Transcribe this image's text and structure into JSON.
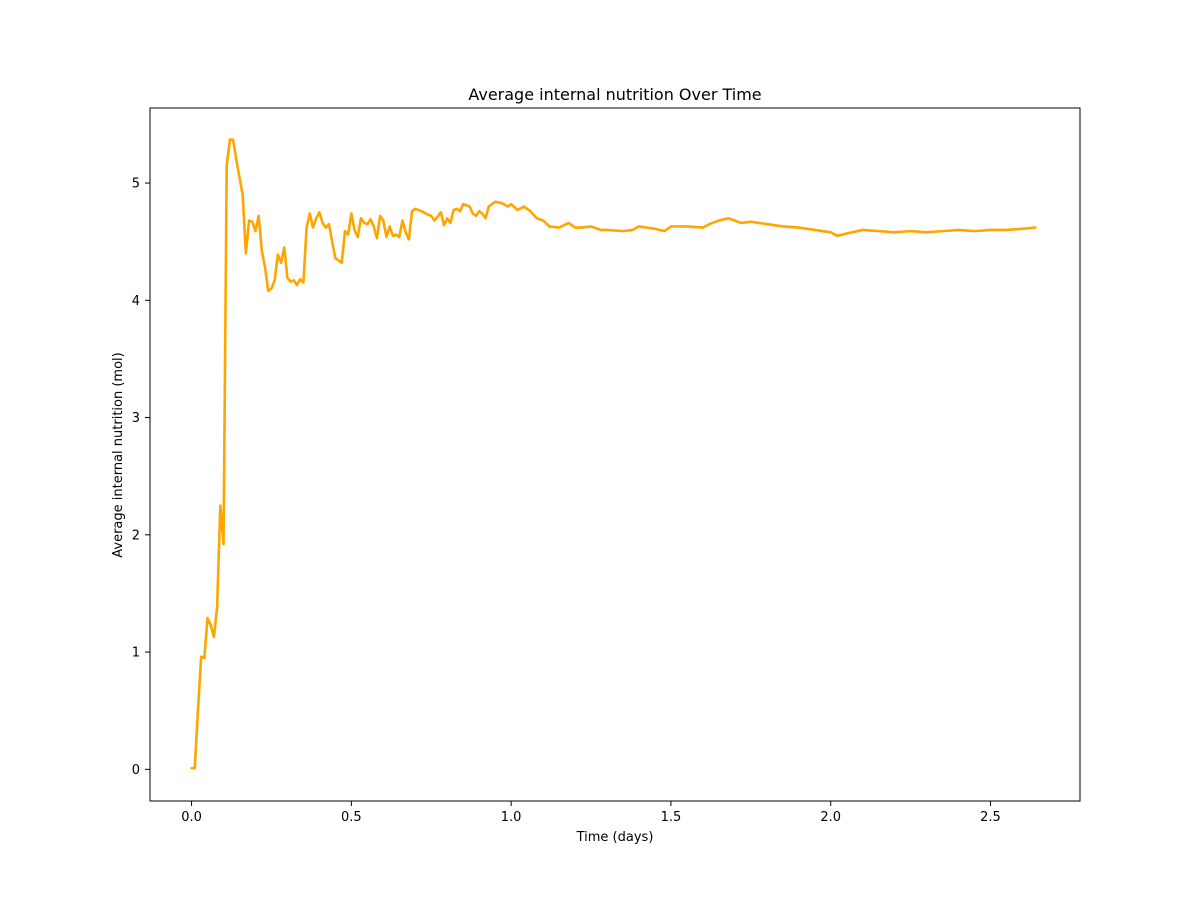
{
  "chart_data": {
    "type": "line",
    "title": "Average internal nutrition Over Time",
    "xlabel": "Time (days)",
    "ylabel": "Average internal nutrition (mol)",
    "xlim": [
      -0.13,
      2.78
    ],
    "ylim": [
      -0.27,
      5.64
    ],
    "xticks": [
      0.0,
      0.5,
      1.0,
      1.5,
      2.0,
      2.5
    ],
    "xtick_labels": [
      "0.0",
      "0.5",
      "1.0",
      "1.5",
      "2.0",
      "2.5"
    ],
    "yticks": [
      0,
      1,
      2,
      3,
      4,
      5
    ],
    "ytick_labels": [
      "0",
      "1",
      "2",
      "3",
      "4",
      "5"
    ],
    "grid": false,
    "legend": "none",
    "series": [
      {
        "color": "#FFA500",
        "x": [
          0.0,
          0.01,
          0.02,
          0.03,
          0.04,
          0.05,
          0.06,
          0.07,
          0.08,
          0.09,
          0.1,
          0.11,
          0.12,
          0.13,
          0.14,
          0.15,
          0.16,
          0.17,
          0.18,
          0.19,
          0.2,
          0.21,
          0.22,
          0.23,
          0.24,
          0.25,
          0.26,
          0.27,
          0.28,
          0.29,
          0.3,
          0.31,
          0.32,
          0.33,
          0.34,
          0.35,
          0.36,
          0.37,
          0.38,
          0.39,
          0.4,
          0.41,
          0.42,
          0.43,
          0.44,
          0.45,
          0.46,
          0.47,
          0.48,
          0.49,
          0.5,
          0.51,
          0.52,
          0.53,
          0.54,
          0.55,
          0.56,
          0.57,
          0.58,
          0.59,
          0.6,
          0.61,
          0.62,
          0.63,
          0.64,
          0.65,
          0.66,
          0.67,
          0.68,
          0.69,
          0.7,
          0.72,
          0.74,
          0.75,
          0.76,
          0.78,
          0.79,
          0.8,
          0.81,
          0.82,
          0.83,
          0.84,
          0.85,
          0.87,
          0.88,
          0.89,
          0.9,
          0.91,
          0.92,
          0.93,
          0.95,
          0.97,
          0.99,
          1.0,
          1.02,
          1.04,
          1.05,
          1.06,
          1.08,
          1.1,
          1.12,
          1.15,
          1.18,
          1.2,
          1.22,
          1.25,
          1.28,
          1.3,
          1.35,
          1.38,
          1.4,
          1.45,
          1.48,
          1.5,
          1.55,
          1.6,
          1.62,
          1.65,
          1.68,
          1.7,
          1.72,
          1.75,
          1.8,
          1.85,
          1.9,
          1.95,
          2.0,
          2.02,
          2.05,
          2.1,
          2.15,
          2.2,
          2.25,
          2.3,
          2.35,
          2.4,
          2.45,
          2.5,
          2.55,
          2.6,
          2.64
        ],
        "y": [
          0.01,
          0.01,
          0.5,
          0.96,
          0.95,
          1.29,
          1.23,
          1.13,
          1.38,
          2.25,
          1.92,
          5.15,
          5.37,
          5.37,
          5.2,
          5.05,
          4.9,
          4.4,
          4.68,
          4.67,
          4.59,
          4.72,
          4.42,
          4.28,
          4.08,
          4.1,
          4.17,
          4.39,
          4.32,
          4.45,
          4.19,
          4.16,
          4.17,
          4.13,
          4.18,
          4.15,
          4.62,
          4.74,
          4.62,
          4.7,
          4.75,
          4.66,
          4.62,
          4.65,
          4.5,
          4.36,
          4.34,
          4.32,
          4.59,
          4.56,
          4.74,
          4.6,
          4.54,
          4.7,
          4.66,
          4.65,
          4.69,
          4.63,
          4.53,
          4.72,
          4.68,
          4.54,
          4.63,
          4.55,
          4.56,
          4.54,
          4.68,
          4.58,
          4.52,
          4.76,
          4.78,
          4.76,
          4.73,
          4.72,
          4.68,
          4.75,
          4.64,
          4.7,
          4.66,
          4.77,
          4.78,
          4.76,
          4.82,
          4.8,
          4.74,
          4.72,
          4.76,
          4.74,
          4.7,
          4.8,
          4.84,
          4.83,
          4.8,
          4.82,
          4.77,
          4.8,
          4.78,
          4.76,
          4.7,
          4.68,
          4.63,
          4.62,
          4.66,
          4.62,
          4.62,
          4.63,
          4.6,
          4.6,
          4.59,
          4.6,
          4.63,
          4.61,
          4.59,
          4.63,
          4.63,
          4.62,
          4.65,
          4.68,
          4.7,
          4.68,
          4.66,
          4.67,
          4.65,
          4.63,
          4.62,
          4.6,
          4.58,
          4.55,
          4.57,
          4.6,
          4.59,
          4.58,
          4.59,
          4.58,
          4.59,
          4.6,
          4.59,
          4.6,
          4.6,
          4.61,
          4.62
        ]
      }
    ]
  }
}
